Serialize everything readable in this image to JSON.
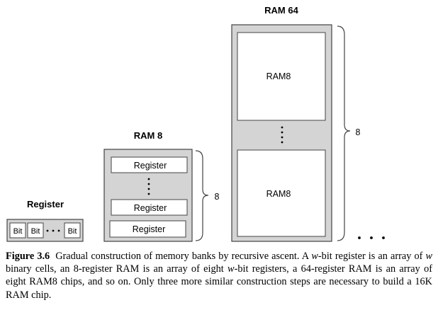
{
  "register": {
    "title": "Register",
    "cells": [
      "Bit",
      "Bit",
      "Bit"
    ]
  },
  "ram8": {
    "title": "RAM 8",
    "registers": [
      "Register",
      "Register",
      "Register"
    ],
    "count_label": "8"
  },
  "ram64": {
    "title": "RAM 64",
    "blocks": [
      "RAM8",
      "RAM8"
    ],
    "count_label": "8"
  },
  "caption": {
    "figure_label": "Figure 3.6",
    "p1": "Gradual construction of memory banks by recursive ascent. A ",
    "w1": "w",
    "p2": "-bit register is an array of ",
    "w2": "w",
    "p3": " binary cells, an 8-register RAM is an array of eight ",
    "w3": "w",
    "p4": "-bit registers, a 64-register RAM is an array of eight RAM8 chips, and so on. Only three more similar construction steps are necessary to build a 16K RAM chip."
  },
  "colors": {
    "container_fill": "#d4d4d4",
    "cell_fill": "#ffffff",
    "stroke": "#444444"
  }
}
